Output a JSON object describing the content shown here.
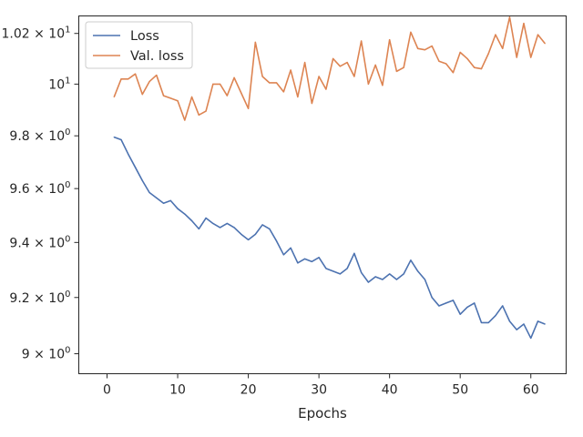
{
  "chart_data": {
    "type": "line",
    "title": "",
    "xlabel": "Epochs",
    "ylabel": "",
    "yscale": "log",
    "xlim": [
      -4,
      65
    ],
    "ylim": [
      8.93,
      10.27
    ],
    "grid": false,
    "legend_position": "top-left",
    "x_ticks": [
      {
        "value": 0,
        "label": "0"
      },
      {
        "value": 10,
        "label": "10"
      },
      {
        "value": 20,
        "label": "20"
      },
      {
        "value": 30,
        "label": "30"
      },
      {
        "value": 40,
        "label": "40"
      },
      {
        "value": 50,
        "label": "50"
      },
      {
        "value": 60,
        "label": "60"
      }
    ],
    "y_ticks": [
      {
        "value": 9.0,
        "base": "9",
        "sup": "0"
      },
      {
        "value": 9.2,
        "base": "9.2",
        "sup": "0"
      },
      {
        "value": 9.4,
        "base": "9.4",
        "sup": "0"
      },
      {
        "value": 9.6,
        "base": "9.6",
        "sup": "0"
      },
      {
        "value": 9.8,
        "base": "9.8",
        "sup": "0"
      },
      {
        "value": 10.0,
        "base": "10",
        "sup": "1"
      },
      {
        "value": 10.2,
        "base": "1.02",
        "sup": "1"
      }
    ],
    "x": [
      1,
      2,
      3,
      4,
      5,
      6,
      7,
      8,
      9,
      10,
      11,
      12,
      13,
      14,
      15,
      16,
      17,
      18,
      19,
      20,
      21,
      22,
      23,
      24,
      25,
      26,
      27,
      28,
      29,
      30,
      31,
      32,
      33,
      34,
      35,
      36,
      37,
      38,
      39,
      40,
      41,
      42,
      43,
      44,
      45,
      46,
      47,
      48,
      49,
      50,
      51,
      52,
      53,
      54,
      55,
      56,
      57,
      58,
      59,
      60,
      61,
      62
    ],
    "series": [
      {
        "name": "Loss",
        "color": "#4c72b0",
        "values": [
          9.795,
          9.785,
          9.73,
          9.68,
          9.63,
          9.585,
          9.565,
          9.545,
          9.555,
          9.525,
          9.505,
          9.48,
          9.45,
          9.49,
          9.47,
          9.455,
          9.47,
          9.455,
          9.43,
          9.41,
          9.43,
          9.465,
          9.45,
          9.405,
          9.355,
          9.38,
          9.325,
          9.34,
          9.33,
          9.345,
          9.305,
          9.295,
          9.285,
          9.305,
          9.36,
          9.29,
          9.255,
          9.275,
          9.265,
          9.285,
          9.265,
          9.285,
          9.335,
          9.295,
          9.265,
          9.2,
          9.17,
          9.18,
          9.19,
          9.14,
          9.165,
          9.18,
          9.11,
          9.11,
          9.135,
          9.17,
          9.115,
          9.085,
          9.105,
          9.055,
          9.115,
          9.105
        ]
      },
      {
        "name": "Val. loss",
        "color": "#dd8452",
        "values": [
          9.95,
          10.02,
          10.02,
          10.04,
          9.96,
          10.01,
          10.035,
          9.955,
          9.945,
          9.935,
          9.86,
          9.95,
          9.88,
          9.895,
          10.0,
          10.0,
          9.955,
          10.025,
          9.965,
          9.905,
          10.165,
          10.03,
          10.005,
          10.005,
          9.97,
          10.055,
          9.95,
          10.085,
          9.925,
          10.03,
          9.98,
          10.1,
          10.07,
          10.085,
          10.03,
          10.17,
          10.0,
          10.075,
          9.995,
          10.175,
          10.05,
          10.065,
          10.205,
          10.14,
          10.135,
          10.15,
          10.09,
          10.08,
          10.045,
          10.125,
          10.1,
          10.065,
          10.06,
          10.12,
          10.195,
          10.14,
          10.265,
          10.105,
          10.24,
          10.105,
          10.195,
          10.16
        ]
      }
    ]
  }
}
